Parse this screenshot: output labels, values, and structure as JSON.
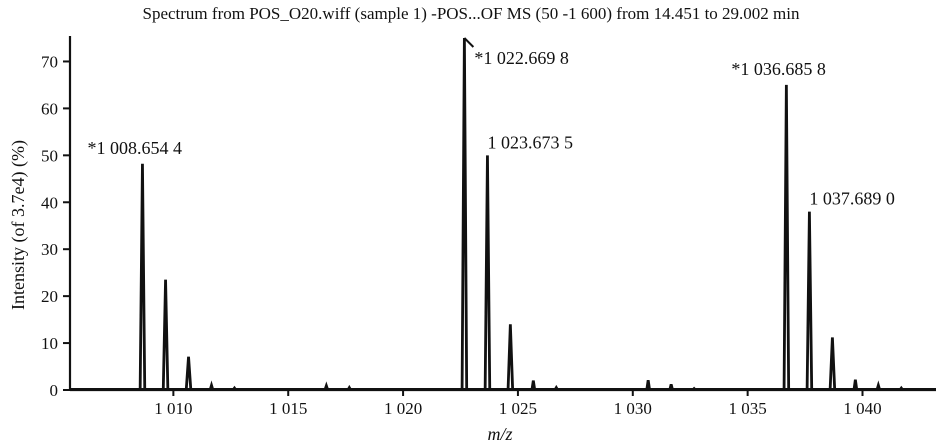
{
  "chart_data": {
    "type": "mass_spectrum",
    "title": "Spectrum from POS_O20.wiff (sample 1) -POS...OF MS (50 -1 600) from 14.451 to 29.002 min",
    "xlabel": "m/z",
    "ylabel": "Intensity (of 3.7e4) (%)",
    "xlim": [
      1005.5,
      1043.2
    ],
    "ylim": [
      0,
      75
    ],
    "x_ticks": [
      1010,
      1015,
      1020,
      1025,
      1030,
      1035,
      1040
    ],
    "x_tick_labels": [
      "1 010",
      "1 015",
      "1 020",
      "1 025",
      "1 030",
      "1 035",
      "1 040"
    ],
    "y_ticks": [
      0,
      10,
      20,
      30,
      40,
      50,
      60,
      70
    ],
    "y_tick_labels": [
      "0",
      "10",
      "20",
      "30",
      "40",
      "50",
      "60",
      "70"
    ],
    "peaks": [
      {
        "mz": 1008.654,
        "intensity": 48.2,
        "label": "*1 008.654 4"
      },
      {
        "mz": 1009.66,
        "intensity": 23.5,
        "label": ""
      },
      {
        "mz": 1010.66,
        "intensity": 7.1,
        "label": ""
      },
      {
        "mz": 1011.66,
        "intensity": 1.0,
        "label": ""
      },
      {
        "mz": 1012.66,
        "intensity": 0.4,
        "label": ""
      },
      {
        "mz": 1016.66,
        "intensity": 0.9,
        "label": ""
      },
      {
        "mz": 1017.66,
        "intensity": 0.5,
        "label": ""
      },
      {
        "mz": 1022.669,
        "intensity": 75.0,
        "label": "*1 022.669 8"
      },
      {
        "mz": 1023.673,
        "intensity": 50.0,
        "label": "1 023.673 5"
      },
      {
        "mz": 1024.67,
        "intensity": 14.0,
        "label": ""
      },
      {
        "mz": 1025.67,
        "intensity": 2.0,
        "label": ""
      },
      {
        "mz": 1026.67,
        "intensity": 0.5,
        "label": ""
      },
      {
        "mz": 1030.67,
        "intensity": 2.1,
        "label": ""
      },
      {
        "mz": 1031.67,
        "intensity": 1.2,
        "label": ""
      },
      {
        "mz": 1032.67,
        "intensity": 0.3,
        "label": ""
      },
      {
        "mz": 1036.686,
        "intensity": 65.0,
        "label": "*1 036.685 8"
      },
      {
        "mz": 1037.689,
        "intensity": 38.0,
        "label": "1 037.689 0"
      },
      {
        "mz": 1038.69,
        "intensity": 11.2,
        "label": ""
      },
      {
        "mz": 1039.69,
        "intensity": 2.2,
        "label": ""
      },
      {
        "mz": 1040.69,
        "intensity": 1.0,
        "label": ""
      },
      {
        "mz": 1041.69,
        "intensity": 0.4,
        "label": ""
      }
    ]
  }
}
